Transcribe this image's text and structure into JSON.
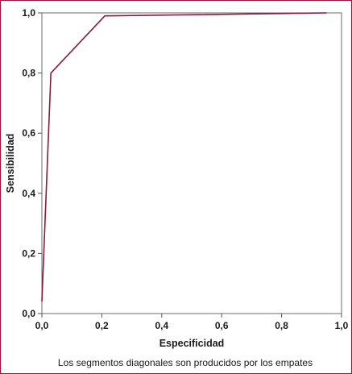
{
  "chart_data": {
    "type": "line",
    "xlabel": "Especificidad",
    "ylabel": "Sensibilidad",
    "xlim": [
      0.0,
      1.0
    ],
    "ylim": [
      0.0,
      1.0
    ],
    "x_ticks": [
      "0,0",
      "0,2",
      "0,4",
      "0,6",
      "0,8",
      "1,0"
    ],
    "y_ticks": [
      "0,0",
      "0,2",
      "0,4",
      "0,6",
      "0,8",
      "1,0"
    ],
    "grid": false,
    "note": "Los segmentos diagonales son producidos por los empates",
    "line_color": "#8b1a3c",
    "series": [
      {
        "x": [
          0.0,
          0.03,
          0.21,
          0.95
        ],
        "y": [
          0.04,
          0.8,
          0.99,
          1.0
        ]
      }
    ]
  }
}
